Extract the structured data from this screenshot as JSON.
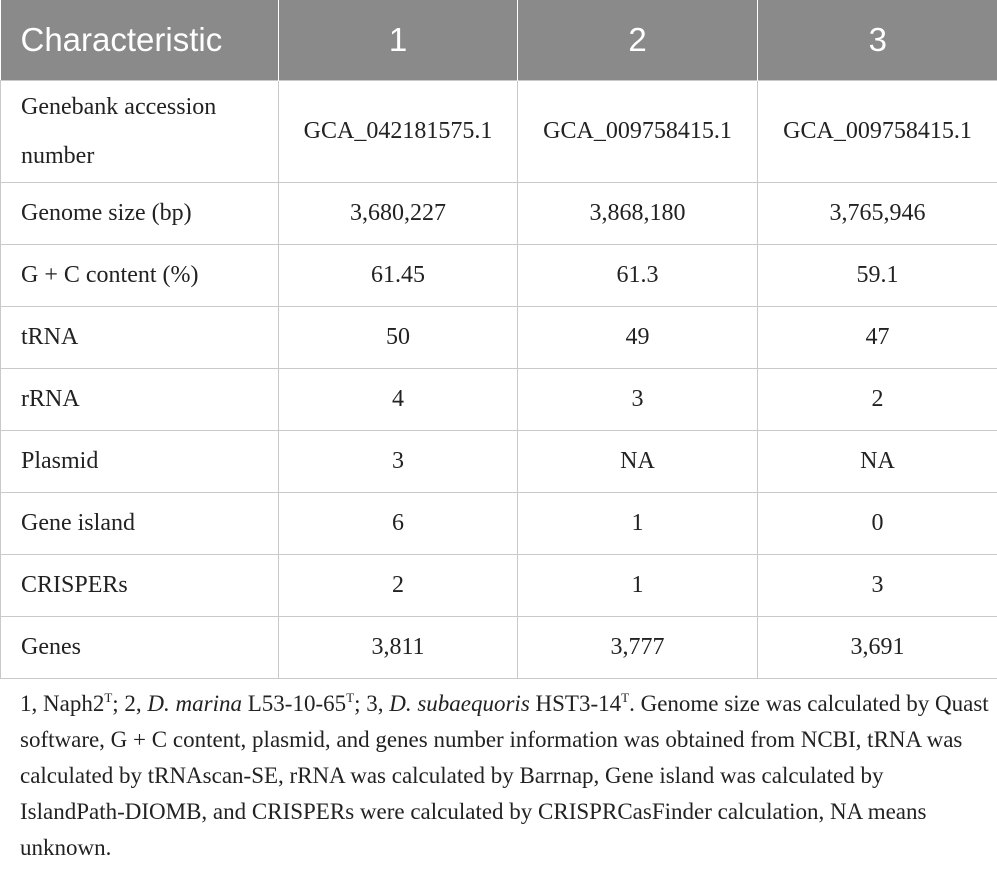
{
  "table": {
    "headers": [
      "Characteristic",
      "1",
      "2",
      "3"
    ],
    "rows": [
      {
        "label": "Genebank accession number",
        "values": [
          "GCA_042181575.1",
          "GCA_009758415.1",
          "GCA_009758415.1"
        ]
      },
      {
        "label": "Genome size (bp)",
        "values": [
          "3,680,227",
          "3,868,180",
          "3,765,946"
        ]
      },
      {
        "label": "G + C content (%)",
        "values": [
          "61.45",
          "61.3",
          "59.1"
        ]
      },
      {
        "label": "tRNA",
        "values": [
          "50",
          "49",
          "47"
        ]
      },
      {
        "label": "rRNA",
        "values": [
          "4",
          "3",
          "2"
        ]
      },
      {
        "label": "Plasmid",
        "values": [
          "3",
          "NA",
          "NA"
        ]
      },
      {
        "label": "Gene island",
        "values": [
          "6",
          "1",
          "0"
        ]
      },
      {
        "label": "CRISPERs",
        "values": [
          "2",
          "1",
          "3"
        ]
      },
      {
        "label": "Genes",
        "values": [
          "3,811",
          "3,777",
          "3,691"
        ]
      }
    ]
  },
  "footnote": {
    "p1": "1, Naph2",
    "p1_sup": "T",
    "p2": "; 2, ",
    "p2_italic": "D. marina",
    "p3": " L53-10-65",
    "p3_sup": "T",
    "p4": "; 3, ",
    "p4_italic": "D. subaequoris",
    "p5": " HST3-14",
    "p5_sup": "T",
    "p6": ". Genome size was calculated by Quast software, G + C content, plasmid, and genes number information was obtained from NCBI, tRNA was calculated by tRNAscan-SE, rRNA was calculated by Barrnap, Gene island was calculated by IslandPath-DIOMB, and CRISPERs were calculated by CRISPRCasFinder calculation, NA means unknown."
  }
}
